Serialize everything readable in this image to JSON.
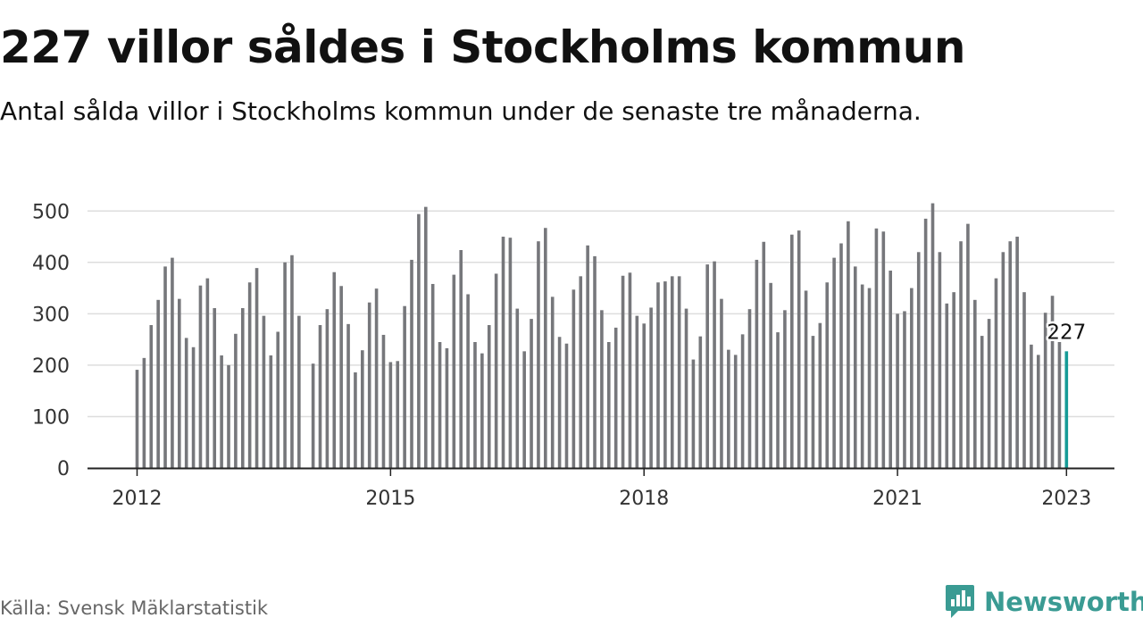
{
  "title": "227 villor såldes i Stockholms kommun",
  "subtitle": "Antal sålda villor i Stockholms kommun under de senaste tre månaderna.",
  "source": "Källa: Svensk Mäklarstatistik",
  "brand": {
    "name": "Newsworthy",
    "logo_icon": "newsworthy-chart-icon",
    "color": "#3a9b93"
  },
  "colors": {
    "bar": "#76777b",
    "highlight": "#159b97",
    "grid": "#dddddd",
    "axis": "#222222",
    "text": "#333333"
  },
  "chart_data": {
    "type": "bar",
    "start": "2012-01",
    "ylim": [
      0,
      520
    ],
    "yticks": [
      0,
      100,
      200,
      300,
      400,
      500
    ],
    "xticks": [
      "2012",
      "2015",
      "2018",
      "2021",
      "2023"
    ],
    "grid": true,
    "highlight_label": "227",
    "values": [
      191,
      214,
      278,
      327,
      392,
      409,
      329,
      253,
      235,
      355,
      369,
      311,
      219,
      200,
      261,
      311,
      361,
      389,
      296,
      219,
      265,
      400,
      414,
      296,
      null,
      203,
      278,
      309,
      381,
      354,
      280,
      186,
      229,
      322,
      349,
      259,
      206,
      208,
      315,
      405,
      494,
      508,
      358,
      245,
      233,
      376,
      424,
      338,
      245,
      223,
      278,
      378,
      450,
      448,
      310,
      227,
      290,
      441,
      467,
      333,
      255,
      242,
      347,
      373,
      433,
      412,
      307,
      245,
      273,
      374,
      380,
      296,
      281,
      312,
      361,
      363,
      373,
      373,
      310,
      211,
      256,
      396,
      402,
      329,
      230,
      220,
      260,
      309,
      405,
      440,
      360,
      264,
      307,
      454,
      462,
      345,
      257,
      282,
      361,
      409,
      437,
      480,
      392,
      357,
      350,
      466,
      460,
      384,
      300,
      305,
      350,
      420,
      485,
      515,
      420,
      320,
      342,
      441,
      475,
      327,
      257,
      290,
      369,
      420,
      441,
      450,
      342,
      240,
      220,
      302,
      335,
      245,
      227
    ]
  }
}
